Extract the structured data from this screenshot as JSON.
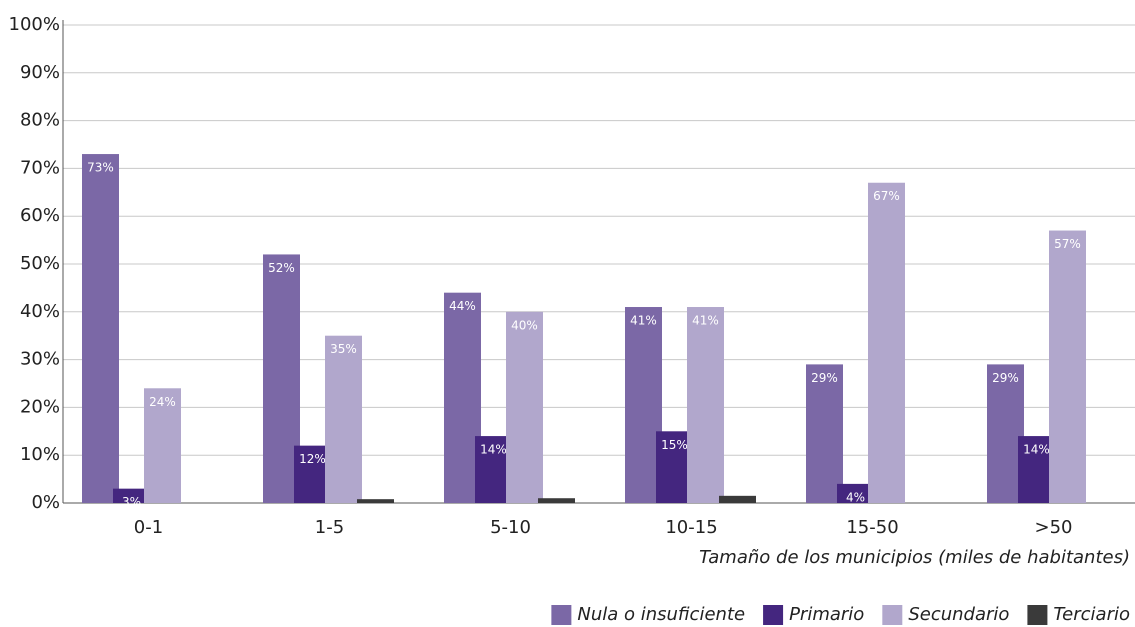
{
  "chart_data": {
    "type": "bar",
    "x_label": "Tamaño de los municipios (miles de habitantes)",
    "categories": [
      "0-1",
      "1-5",
      "5-10",
      "10-15",
      "15-50",
      ">50"
    ],
    "series": [
      {
        "name": "Nula o insuficiente",
        "color": "#7b68a6",
        "values": [
          73,
          52,
          44,
          41,
          29,
          29
        ],
        "value_labels": [
          "73%",
          "52%",
          "44%",
          "41%",
          "29%",
          "29%"
        ]
      },
      {
        "name": "Primario",
        "color": "#44267f",
        "values": [
          3,
          12,
          14,
          15,
          4,
          14
        ],
        "value_labels": [
          "3%",
          "12%",
          "14%",
          "15%",
          "4%",
          "14%"
        ]
      },
      {
        "name": "Secundario",
        "color": "#b1a7cc",
        "values": [
          24,
          35,
          40,
          41,
          67,
          57
        ],
        "value_labels": [
          "24%",
          "35%",
          "40%",
          "41%",
          "67%",
          "57%"
        ]
      },
      {
        "name": "Terciario",
        "color": "#3a3a3a",
        "values": [
          0,
          0.8,
          1,
          1.5,
          0,
          0
        ]
      }
    ],
    "ylim": [
      0,
      100
    ],
    "yticks": [
      {
        "value": 0,
        "label": "0%"
      },
      {
        "value": 10,
        "label": "10%"
      },
      {
        "value": 20,
        "label": "20%"
      },
      {
        "value": 30,
        "label": "30%"
      },
      {
        "value": 40,
        "label": "40%"
      },
      {
        "value": 50,
        "label": "50%"
      },
      {
        "value": 60,
        "label": "60%"
      },
      {
        "value": 70,
        "label": "70%"
      },
      {
        "value": 80,
        "label": "80%"
      },
      {
        "value": 90,
        "label": "90%"
      },
      {
        "value": 100,
        "label": "100%"
      }
    ],
    "grid": true,
    "legend": "bottom-right"
  }
}
